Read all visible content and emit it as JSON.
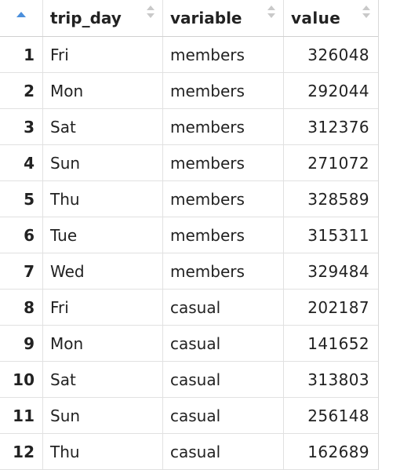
{
  "table": {
    "columns": [
      "trip_day",
      "variable",
      "value"
    ],
    "sorted_column": "row-index",
    "rows": [
      {
        "idx": "1",
        "trip_day": "Fri",
        "variable": "members",
        "value": "326048"
      },
      {
        "idx": "2",
        "trip_day": "Mon",
        "variable": "members",
        "value": "292044"
      },
      {
        "idx": "3",
        "trip_day": "Sat",
        "variable": "members",
        "value": "312376"
      },
      {
        "idx": "4",
        "trip_day": "Sun",
        "variable": "members",
        "value": "271072"
      },
      {
        "idx": "5",
        "trip_day": "Thu",
        "variable": "members",
        "value": "328589"
      },
      {
        "idx": "6",
        "trip_day": "Tue",
        "variable": "members",
        "value": "315311"
      },
      {
        "idx": "7",
        "trip_day": "Wed",
        "variable": "members",
        "value": "329484"
      },
      {
        "idx": "8",
        "trip_day": "Fri",
        "variable": "casual",
        "value": "202187"
      },
      {
        "idx": "9",
        "trip_day": "Mon",
        "variable": "casual",
        "value": "141652"
      },
      {
        "idx": "10",
        "trip_day": "Sat",
        "variable": "casual",
        "value": "313803"
      },
      {
        "idx": "11",
        "trip_day": "Sun",
        "variable": "casual",
        "value": "256148"
      },
      {
        "idx": "12",
        "trip_day": "Thu",
        "variable": "casual",
        "value": "162689"
      }
    ]
  },
  "icons": {
    "row_index_sort": "sort-ascending-icon",
    "column_sort": "sort-both-icon"
  },
  "colors": {
    "sort_active": "#4b8fdc",
    "sort_inactive": "#c9c9c9",
    "grid_line": "#e1e1e1"
  }
}
